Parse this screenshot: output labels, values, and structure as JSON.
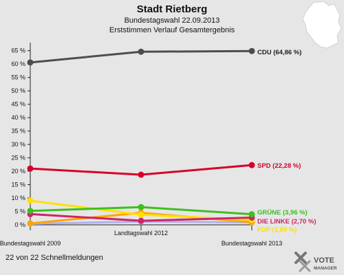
{
  "chart_data": {
    "type": "line",
    "title": "Stadt Rietberg",
    "subtitle": "Bundestagswahl 22.09.2013",
    "subtitle2": "Erststimmen Verlauf Gesamtergebnis",
    "categories": [
      "Bundestagswahl 2009",
      "Landtagswahl 2012",
      "Bundestagswahl 2013"
    ],
    "ylim": [
      0,
      68
    ],
    "yticks": [
      0,
      5,
      10,
      15,
      20,
      25,
      30,
      35,
      40,
      45,
      50,
      55,
      60,
      65
    ],
    "ytick_labels": [
      "0 %",
      "5 %",
      "10 %",
      "15 %",
      "20 %",
      "25 %",
      "30 %",
      "35 %",
      "40 %",
      "45 %",
      "50 %",
      "55 %",
      "60 %",
      "65 %"
    ],
    "grid": false,
    "series": [
      {
        "name": "CDU",
        "values": [
          60.6,
          64.6,
          64.86
        ],
        "color": "#4d4d4d",
        "label": "CDU (64,86 %)"
      },
      {
        "name": "SPD",
        "values": [
          21.0,
          18.7,
          22.28
        ],
        "color": "#d6002a",
        "label": "SPD (22,28 %)"
      },
      {
        "name": "GRÜNE",
        "values": [
          5.2,
          6.6,
          3.96
        ],
        "color": "#3dbf20",
        "label": "GRÜNE (3,96 %)"
      },
      {
        "name": "DIE LINKE",
        "values": [
          4.0,
          1.5,
          2.7
        ],
        "color": "#cc2566",
        "label": "DIE LINKE (2,70 %)"
      },
      {
        "name": "FDP",
        "values": [
          9.0,
          3.8,
          1.8
        ],
        "color": "#ffe000",
        "label": "FDP (1,80 %)"
      },
      {
        "name": "",
        "values": [
          0.5,
          4.5,
          1.0
        ],
        "color": "#ffa500",
        "label": ""
      },
      {
        "name": "",
        "values": [
          0.4,
          1.2,
          0.9
        ],
        "color": "#b0b0ee",
        "label": ""
      }
    ]
  },
  "footer": "22 von 22 Schnellmeldungen",
  "logo": {
    "line1": "VOTE",
    "line2": "MANAGER"
  }
}
